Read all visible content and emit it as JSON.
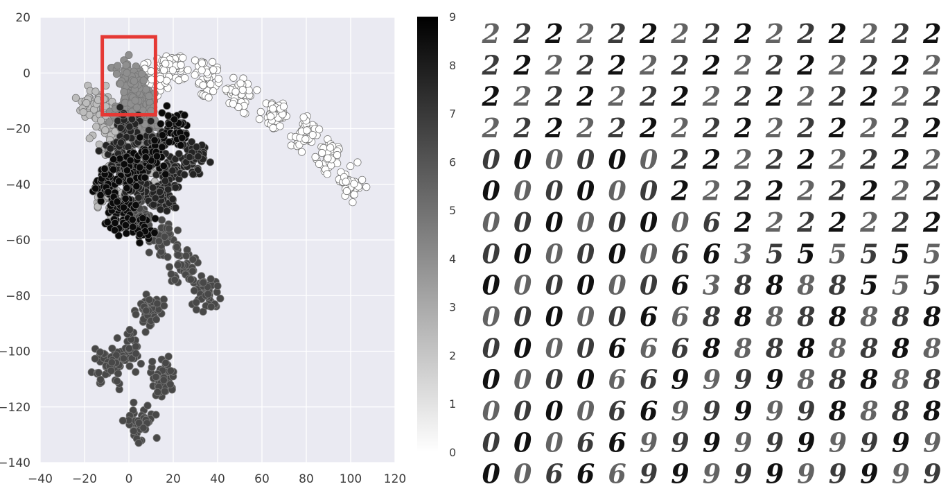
{
  "chart_data": [
    {
      "type": "scatter",
      "title": "",
      "xlabel": "",
      "ylabel": "",
      "xlim": [
        -40,
        120
      ],
      "ylim": [
        -140,
        20
      ],
      "x_ticks": [
        "−40",
        "−20",
        "0",
        "20",
        "40",
        "60",
        "80",
        "100",
        "120"
      ],
      "y_ticks": [
        "20",
        "0",
        "−20",
        "−40",
        "−60",
        "−80",
        "−100",
        "−120",
        "−140"
      ],
      "grid": true,
      "background": "#eaeaf2",
      "colormap": "Greys",
      "colorbar": {
        "min": 0,
        "max": 9,
        "ticks": [
          "0",
          "1",
          "2",
          "3",
          "4",
          "5",
          "6",
          "7",
          "8",
          "9"
        ]
      },
      "highlight_box": {
        "x": [
          -12,
          12
        ],
        "y": [
          -15,
          13
        ],
        "color": "#e53935"
      },
      "series": [
        {
          "label": 0,
          "color": "#ffffff",
          "band": {
            "x0": 10,
            "x1": 100,
            "y0": 0,
            "y1": -48,
            "spread": 6
          },
          "points": [
            [
              10,
              -2
            ],
            [
              20,
              1
            ],
            [
              35,
              -2
            ],
            [
              50,
              -8
            ],
            [
              65,
              -15
            ],
            [
              80,
              -22
            ],
            [
              90,
              -30
            ],
            [
              100,
              -40
            ]
          ]
        },
        {
          "label": 2,
          "color": "#bdbdbd",
          "points": [
            [
              -15,
              -10
            ],
            [
              -10,
              -20
            ],
            [
              -5,
              -28
            ],
            [
              2,
              -12
            ],
            [
              5,
              -35
            ],
            [
              -8,
              -45
            ]
          ]
        },
        {
          "label": 4,
          "color": "#8f8f8f",
          "points": [
            [
              0,
              -2
            ],
            [
              5,
              -8
            ],
            [
              -3,
              -15
            ],
            [
              8,
              -18
            ],
            [
              2,
              -5
            ]
          ]
        },
        {
          "label": 6,
          "color": "#484848",
          "points": [
            [
              5,
              -50
            ],
            [
              15,
              -60
            ],
            [
              25,
              -70
            ],
            [
              10,
              -85
            ],
            [
              0,
              -100
            ],
            [
              15,
              -110
            ],
            [
              35,
              -80
            ],
            [
              -10,
              -105
            ],
            [
              5,
              -126
            ]
          ]
        },
        {
          "label": 8,
          "color": "#242424",
          "points": [
            [
              0,
              -20
            ],
            [
              10,
              -25
            ],
            [
              20,
              -35
            ],
            [
              5,
              -40
            ],
            [
              -5,
              -30
            ],
            [
              15,
              -45
            ],
            [
              30,
              -30
            ]
          ]
        },
        {
          "label": 9,
          "color": "#0a0a0a",
          "points": [
            [
              -10,
              -40
            ],
            [
              -5,
              -50
            ],
            [
              0,
              -35
            ],
            [
              10,
              -30
            ],
            [
              20,
              -20
            ],
            [
              5,
              -55
            ]
          ]
        }
      ]
    },
    {
      "type": "image-grid",
      "rows": 15,
      "cols": 15,
      "cell_glyphs": [
        "222222222222222",
        "222222222222222",
        "222222222222222",
        "222222222222222",
        "000000222222222",
        "000000222222222",
        "000000062222222",
        "000000663555555",
        "000000638888555",
        "000006688888888",
        "000066688888888",
        "000066999988888",
        "000066999998888",
        "000669999999999",
        "006669999999999"
      ]
    }
  ]
}
